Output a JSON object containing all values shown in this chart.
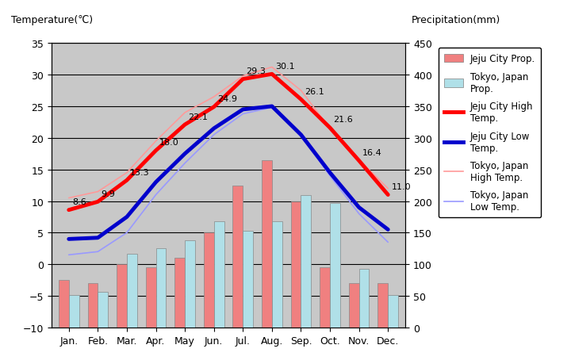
{
  "months": [
    "Jan.",
    "Feb.",
    "Mar.",
    "Apr.",
    "May",
    "Jun.",
    "Jul.",
    "Aug.",
    "Sep.",
    "Oct.",
    "Nov.",
    "Dec."
  ],
  "jeju_high": [
    8.6,
    9.9,
    13.3,
    18.0,
    22.1,
    24.9,
    29.3,
    30.1,
    26.1,
    21.6,
    16.4,
    11.0
  ],
  "jeju_low": [
    4.0,
    4.2,
    7.5,
    13.0,
    17.5,
    21.5,
    24.5,
    25.0,
    20.5,
    14.5,
    9.0,
    5.5
  ],
  "tokyo_high": [
    10.5,
    11.5,
    14.5,
    19.5,
    24.0,
    26.5,
    29.8,
    31.2,
    27.5,
    21.5,
    16.5,
    12.0
  ],
  "tokyo_low": [
    1.5,
    2.0,
    5.0,
    11.0,
    16.0,
    20.5,
    23.8,
    24.8,
    20.5,
    14.0,
    8.0,
    3.5
  ],
  "jeju_precip": [
    75,
    70,
    100,
    95,
    110,
    150,
    225,
    265,
    200,
    95,
    70,
    70
  ],
  "tokyo_precip": [
    52,
    56,
    117,
    125,
    138,
    168,
    153,
    168,
    210,
    197,
    93,
    51
  ],
  "jeju_high_color": "#ff0000",
  "jeju_low_color": "#0000cc",
  "tokyo_high_color": "#ff9999",
  "tokyo_low_color": "#9999ff",
  "jeju_bar_color": "#f08080",
  "tokyo_bar_color": "#b0e0e8",
  "bg_color": "#c0c0c0",
  "plot_bg_color": "#c8c8c8",
  "title_left": "Temperature(℃)",
  "title_right": "Precipitation(mm)",
  "ylim_temp": [
    -10,
    35
  ],
  "ylim_precip": [
    0,
    450
  ],
  "yticks_temp": [
    -10,
    -5,
    0,
    5,
    10,
    15,
    20,
    25,
    30,
    35
  ],
  "yticks_precip": [
    0,
    50,
    100,
    150,
    200,
    250,
    300,
    350,
    400,
    450
  ],
  "jeju_high_labels": [
    "8.6",
    "9.9",
    "13.3",
    "18.0",
    "22.1",
    "24.9",
    "29.3",
    "30.1",
    "26.1",
    "21.6",
    "16.4",
    "11.0"
  ]
}
